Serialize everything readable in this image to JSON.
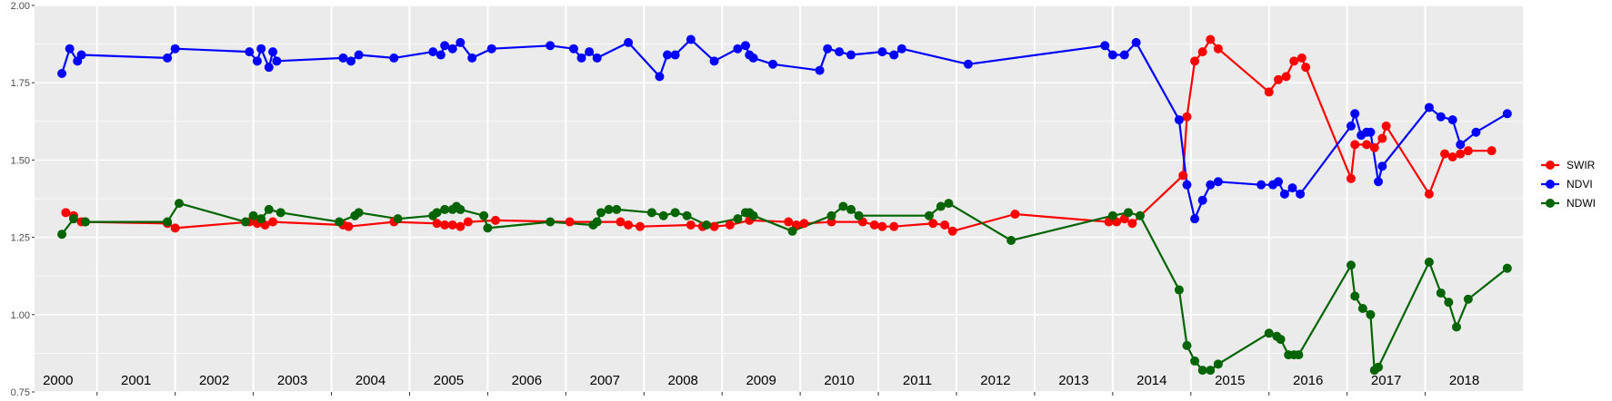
{
  "chart_data": {
    "type": "line",
    "xlim": [
      1999.7,
      2018.75
    ],
    "ylim": [
      0.75,
      2.0
    ],
    "y_ticks": [
      0.75,
      1.0,
      1.25,
      1.5,
      1.75,
      2.0
    ],
    "y_tick_labels": [
      "0.75",
      "1.00",
      "1.25",
      "1.50",
      "1.75",
      "2.00"
    ],
    "year_boundaries": [
      2000.5,
      2001.5,
      2002.5,
      2003.5,
      2004.5,
      2005.5,
      2006.5,
      2007.5,
      2008.5,
      2009.5,
      2010.5,
      2011.5,
      2012.5,
      2013.5,
      2014.5,
      2015.5,
      2016.5,
      2017.5
    ],
    "year_labels": [
      {
        "x": 2000.0,
        "label": "2000"
      },
      {
        "x": 2001.0,
        "label": "2001"
      },
      {
        "x": 2002.0,
        "label": "2002"
      },
      {
        "x": 2003.0,
        "label": "2003"
      },
      {
        "x": 2004.0,
        "label": "2004"
      },
      {
        "x": 2005.0,
        "label": "2005"
      },
      {
        "x": 2006.0,
        "label": "2006"
      },
      {
        "x": 2007.0,
        "label": "2007"
      },
      {
        "x": 2008.0,
        "label": "2008"
      },
      {
        "x": 2009.0,
        "label": "2009"
      },
      {
        "x": 2010.0,
        "label": "2010"
      },
      {
        "x": 2011.0,
        "label": "2011"
      },
      {
        "x": 2012.0,
        "label": "2012"
      },
      {
        "x": 2013.0,
        "label": "2013"
      },
      {
        "x": 2014.0,
        "label": "2014"
      },
      {
        "x": 2015.0,
        "label": "2015"
      },
      {
        "x": 2016.0,
        "label": "2016"
      },
      {
        "x": 2017.0,
        "label": "2017"
      },
      {
        "x": 2018.0,
        "label": "2018"
      }
    ],
    "grid": true,
    "legend_position": "right",
    "series": [
      {
        "name": "SWIR",
        "color": "#ff0000",
        "points": [
          [
            2000.1,
            1.33
          ],
          [
            2000.2,
            1.32
          ],
          [
            2000.3,
            1.3
          ],
          [
            2000.35,
            1.3
          ],
          [
            2001.4,
            1.295
          ],
          [
            2001.5,
            1.28
          ],
          [
            2002.45,
            1.3
          ],
          [
            2002.55,
            1.295
          ],
          [
            2002.65,
            1.29
          ],
          [
            2002.75,
            1.3
          ],
          [
            2003.65,
            1.29
          ],
          [
            2003.72,
            1.285
          ],
          [
            2004.3,
            1.3
          ],
          [
            2004.85,
            1.295
          ],
          [
            2004.95,
            1.29
          ],
          [
            2005.05,
            1.29
          ],
          [
            2005.15,
            1.285
          ],
          [
            2005.25,
            1.3
          ],
          [
            2005.6,
            1.305
          ],
          [
            2006.55,
            1.3
          ],
          [
            2007.2,
            1.3
          ],
          [
            2007.3,
            1.29
          ],
          [
            2007.45,
            1.285
          ],
          [
            2008.1,
            1.29
          ],
          [
            2008.25,
            1.285
          ],
          [
            2008.4,
            1.285
          ],
          [
            2008.6,
            1.29
          ],
          [
            2008.85,
            1.305
          ],
          [
            2009.35,
            1.3
          ],
          [
            2009.45,
            1.29
          ],
          [
            2009.55,
            1.295
          ],
          [
            2009.9,
            1.3
          ],
          [
            2010.3,
            1.3
          ],
          [
            2010.45,
            1.29
          ],
          [
            2010.55,
            1.285
          ],
          [
            2010.7,
            1.285
          ],
          [
            2011.2,
            1.295
          ],
          [
            2011.35,
            1.29
          ],
          [
            2011.45,
            1.27
          ],
          [
            2012.25,
            1.325
          ],
          [
            2013.45,
            1.3
          ],
          [
            2013.55,
            1.3
          ],
          [
            2013.65,
            1.31
          ],
          [
            2013.75,
            1.295
          ],
          [
            2014.4,
            1.45
          ],
          [
            2014.45,
            1.64
          ],
          [
            2014.55,
            1.82
          ],
          [
            2014.65,
            1.85
          ],
          [
            2014.75,
            1.89
          ],
          [
            2014.85,
            1.86
          ],
          [
            2015.5,
            1.72
          ],
          [
            2015.62,
            1.76
          ],
          [
            2015.72,
            1.77
          ],
          [
            2015.82,
            1.82
          ],
          [
            2015.92,
            1.83
          ],
          [
            2015.97,
            1.8
          ],
          [
            2016.55,
            1.44
          ],
          [
            2016.6,
            1.55
          ],
          [
            2016.75,
            1.55
          ],
          [
            2016.85,
            1.54
          ],
          [
            2016.95,
            1.57
          ],
          [
            2017.0,
            1.61
          ],
          [
            2017.55,
            1.39
          ],
          [
            2017.75,
            1.52
          ],
          [
            2017.85,
            1.51
          ],
          [
            2017.95,
            1.52
          ],
          [
            2018.05,
            1.53
          ],
          [
            2018.35,
            1.53
          ]
        ]
      },
      {
        "name": "NDVI",
        "color": "#0000ff",
        "points": [
          [
            2000.05,
            1.78
          ],
          [
            2000.15,
            1.86
          ],
          [
            2000.25,
            1.82
          ],
          [
            2000.3,
            1.84
          ],
          [
            2001.4,
            1.83
          ],
          [
            2001.5,
            1.86
          ],
          [
            2002.45,
            1.85
          ],
          [
            2002.55,
            1.82
          ],
          [
            2002.6,
            1.86
          ],
          [
            2002.7,
            1.8
          ],
          [
            2002.75,
            1.85
          ],
          [
            2002.8,
            1.82
          ],
          [
            2003.65,
            1.83
          ],
          [
            2003.75,
            1.82
          ],
          [
            2003.85,
            1.84
          ],
          [
            2004.3,
            1.83
          ],
          [
            2004.8,
            1.85
          ],
          [
            2004.9,
            1.84
          ],
          [
            2004.95,
            1.87
          ],
          [
            2005.05,
            1.86
          ],
          [
            2005.15,
            1.88
          ],
          [
            2005.3,
            1.83
          ],
          [
            2005.55,
            1.86
          ],
          [
            2006.3,
            1.87
          ],
          [
            2006.6,
            1.86
          ],
          [
            2006.7,
            1.83
          ],
          [
            2006.8,
            1.85
          ],
          [
            2006.9,
            1.83
          ],
          [
            2007.3,
            1.88
          ],
          [
            2007.7,
            1.77
          ],
          [
            2007.8,
            1.84
          ],
          [
            2007.9,
            1.84
          ],
          [
            2008.1,
            1.89
          ],
          [
            2008.4,
            1.82
          ],
          [
            2008.7,
            1.86
          ],
          [
            2008.8,
            1.87
          ],
          [
            2008.85,
            1.84
          ],
          [
            2008.9,
            1.83
          ],
          [
            2009.15,
            1.81
          ],
          [
            2009.75,
            1.79
          ],
          [
            2009.85,
            1.86
          ],
          [
            2010.0,
            1.85
          ],
          [
            2010.15,
            1.84
          ],
          [
            2010.55,
            1.85
          ],
          [
            2010.7,
            1.84
          ],
          [
            2010.8,
            1.86
          ],
          [
            2011.65,
            1.81
          ],
          [
            2013.4,
            1.87
          ],
          [
            2013.5,
            1.84
          ],
          [
            2013.65,
            1.84
          ],
          [
            2013.8,
            1.88
          ],
          [
            2014.35,
            1.63
          ],
          [
            2014.45,
            1.42
          ],
          [
            2014.55,
            1.31
          ],
          [
            2014.65,
            1.37
          ],
          [
            2014.75,
            1.42
          ],
          [
            2014.85,
            1.43
          ],
          [
            2015.4,
            1.42
          ],
          [
            2015.55,
            1.42
          ],
          [
            2015.62,
            1.43
          ],
          [
            2015.7,
            1.39
          ],
          [
            2015.8,
            1.41
          ],
          [
            2015.9,
            1.39
          ],
          [
            2016.55,
            1.61
          ],
          [
            2016.6,
            1.65
          ],
          [
            2016.68,
            1.58
          ],
          [
            2016.75,
            1.59
          ],
          [
            2016.8,
            1.59
          ],
          [
            2016.9,
            1.43
          ],
          [
            2016.95,
            1.48
          ],
          [
            2017.55,
            1.67
          ],
          [
            2017.7,
            1.64
          ],
          [
            2017.85,
            1.63
          ],
          [
            2017.95,
            1.55
          ],
          [
            2018.15,
            1.59
          ],
          [
            2018.55,
            1.65
          ]
        ]
      },
      {
        "name": "NDWI",
        "color": "#006400",
        "points": [
          [
            2000.05,
            1.26
          ],
          [
            2000.2,
            1.31
          ],
          [
            2000.35,
            1.3
          ],
          [
            2001.4,
            1.3
          ],
          [
            2001.55,
            1.36
          ],
          [
            2002.4,
            1.3
          ],
          [
            2002.5,
            1.32
          ],
          [
            2002.6,
            1.31
          ],
          [
            2002.7,
            1.34
          ],
          [
            2002.85,
            1.33
          ],
          [
            2003.6,
            1.3
          ],
          [
            2003.8,
            1.32
          ],
          [
            2003.85,
            1.33
          ],
          [
            2004.35,
            1.31
          ],
          [
            2004.8,
            1.32
          ],
          [
            2004.85,
            1.33
          ],
          [
            2004.95,
            1.34
          ],
          [
            2005.05,
            1.34
          ],
          [
            2005.1,
            1.35
          ],
          [
            2005.15,
            1.34
          ],
          [
            2005.45,
            1.32
          ],
          [
            2005.5,
            1.28
          ],
          [
            2006.3,
            1.3
          ],
          [
            2006.85,
            1.29
          ],
          [
            2006.9,
            1.3
          ],
          [
            2006.95,
            1.33
          ],
          [
            2007.05,
            1.34
          ],
          [
            2007.15,
            1.34
          ],
          [
            2007.6,
            1.33
          ],
          [
            2007.75,
            1.32
          ],
          [
            2007.9,
            1.33
          ],
          [
            2008.05,
            1.32
          ],
          [
            2008.3,
            1.29
          ],
          [
            2008.7,
            1.31
          ],
          [
            2008.8,
            1.33
          ],
          [
            2008.85,
            1.33
          ],
          [
            2008.9,
            1.32
          ],
          [
            2009.4,
            1.27
          ],
          [
            2009.9,
            1.32
          ],
          [
            2010.05,
            1.35
          ],
          [
            2010.15,
            1.34
          ],
          [
            2010.25,
            1.32
          ],
          [
            2011.15,
            1.32
          ],
          [
            2011.3,
            1.35
          ],
          [
            2011.4,
            1.36
          ],
          [
            2012.2,
            1.24
          ],
          [
            2013.5,
            1.32
          ],
          [
            2013.7,
            1.33
          ],
          [
            2013.85,
            1.32
          ],
          [
            2014.35,
            1.08
          ],
          [
            2014.45,
            0.9
          ],
          [
            2014.55,
            0.85
          ],
          [
            2014.65,
            0.82
          ],
          [
            2014.75,
            0.82
          ],
          [
            2014.85,
            0.84
          ],
          [
            2015.5,
            0.94
          ],
          [
            2015.6,
            0.93
          ],
          [
            2015.65,
            0.92
          ],
          [
            2015.75,
            0.87
          ],
          [
            2015.82,
            0.87
          ],
          [
            2015.88,
            0.87
          ],
          [
            2016.55,
            1.16
          ],
          [
            2016.6,
            1.06
          ],
          [
            2016.7,
            1.02
          ],
          [
            2016.8,
            1.0
          ],
          [
            2016.85,
            0.82
          ],
          [
            2016.9,
            0.83
          ],
          [
            2017.55,
            1.17
          ],
          [
            2017.7,
            1.07
          ],
          [
            2017.8,
            1.04
          ],
          [
            2017.9,
            0.96
          ],
          [
            2018.05,
            1.05
          ],
          [
            2018.55,
            1.15
          ]
        ]
      }
    ]
  }
}
